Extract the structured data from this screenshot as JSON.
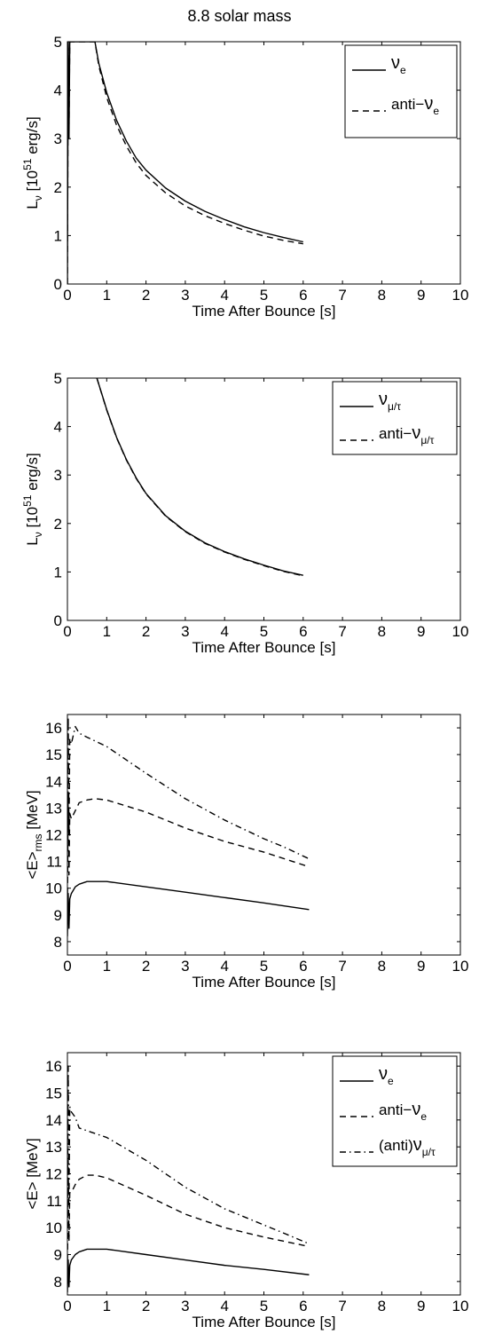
{
  "figure": {
    "title": "8.8 solar mass"
  },
  "chart_data": [
    {
      "type": "line",
      "xlabel": "Time After Bounce [s]",
      "ylabel_main": "L",
      "ylabel_sub": "ν",
      "ylabel_rest": " [10",
      "ylabel_sup": "51",
      "ylabel_tail": " erg/s]",
      "xlim": [
        0,
        10
      ],
      "ylim": [
        0,
        5
      ],
      "xticks": [
        0,
        1,
        2,
        3,
        4,
        5,
        6,
        7,
        8,
        9,
        10
      ],
      "yticks": [
        0,
        1,
        2,
        3,
        4,
        5
      ],
      "legend": "top-right",
      "series": [
        {
          "name_pre": "",
          "name_main": "ν",
          "name_sub": "e",
          "style": "solid",
          "x": [
            0.0,
            0.02,
            0.04,
            0.06,
            0.7,
            0.8,
            1.0,
            1.25,
            1.5,
            1.75,
            2.0,
            2.5,
            3.0,
            3.5,
            4.0,
            4.5,
            5.0,
            5.5,
            6.0
          ],
          "y": [
            0.0,
            5.0,
            3.0,
            5.0,
            5.0,
            4.55,
            3.95,
            3.38,
            2.95,
            2.6,
            2.35,
            1.98,
            1.71,
            1.5,
            1.33,
            1.18,
            1.06,
            0.96,
            0.87
          ]
        },
        {
          "name_pre": "anti−",
          "name_main": "ν",
          "name_sub": "e",
          "style": "dashed",
          "x": [
            0.0,
            0.02,
            0.04,
            0.06,
            0.7,
            0.8,
            1.0,
            1.25,
            1.5,
            1.75,
            2.0,
            2.5,
            3.0,
            3.5,
            4.0,
            4.5,
            5.0,
            5.5,
            6.0
          ],
          "y": [
            0.0,
            5.0,
            3.2,
            5.0,
            5.0,
            4.5,
            3.85,
            3.28,
            2.85,
            2.5,
            2.24,
            1.88,
            1.61,
            1.41,
            1.25,
            1.11,
            0.99,
            0.9,
            0.83
          ]
        }
      ]
    },
    {
      "type": "line",
      "xlabel": "Time After Bounce [s]",
      "ylabel_main": "L",
      "ylabel_sub": "ν",
      "ylabel_rest": " [10",
      "ylabel_sup": "51",
      "ylabel_tail": " erg/s]",
      "xlim": [
        0,
        10
      ],
      "ylim": [
        0,
        5
      ],
      "xticks": [
        0,
        1,
        2,
        3,
        4,
        5,
        6,
        7,
        8,
        9,
        10
      ],
      "yticks": [
        0,
        1,
        2,
        3,
        4,
        5
      ],
      "legend": "top-right",
      "series": [
        {
          "name_pre": "",
          "name_main": "ν",
          "name_sub": "μ/τ",
          "style": "solid",
          "x": [
            0.75,
            1.0,
            1.25,
            1.5,
            1.75,
            2.0,
            2.5,
            3.0,
            3.5,
            4.0,
            4.5,
            5.0,
            5.5,
            6.0
          ],
          "y": [
            5.0,
            4.35,
            3.78,
            3.32,
            2.94,
            2.62,
            2.16,
            1.84,
            1.6,
            1.42,
            1.27,
            1.14,
            1.02,
            0.93
          ]
        },
        {
          "name_pre": "anti−",
          "name_main": "ν",
          "name_sub": "μ/τ",
          "style": "dashed",
          "x": [
            0.75,
            1.0,
            1.25,
            1.5,
            1.75,
            2.0,
            2.5,
            3.0,
            3.5,
            4.0,
            4.5,
            5.0,
            5.5,
            6.0
          ],
          "y": [
            5.0,
            4.34,
            3.77,
            3.31,
            2.93,
            2.61,
            2.15,
            1.83,
            1.59,
            1.41,
            1.26,
            1.13,
            1.01,
            0.92
          ]
        }
      ]
    },
    {
      "type": "line",
      "xlabel": "Time After Bounce [s]",
      "ylabel_main": "<E>",
      "ylabel_sub": "rms",
      "ylabel_rest": " [MeV]",
      "ylabel_sup": "",
      "ylabel_tail": "",
      "xlim": [
        0,
        10
      ],
      "ylim": [
        7.5,
        16.5
      ],
      "xticks": [
        0,
        1,
        2,
        3,
        4,
        5,
        6,
        7,
        8,
        9,
        10
      ],
      "yticks": [
        8,
        9,
        10,
        11,
        12,
        13,
        14,
        15,
        16
      ],
      "legend": "none",
      "series": [
        {
          "style": "solid",
          "x": [
            0.0,
            0.02,
            0.04,
            0.06,
            0.1,
            0.2,
            0.3,
            0.5,
            1.0,
            2.0,
            3.0,
            4.0,
            5.0,
            6.15
          ],
          "y": [
            8.2,
            9.8,
            8.5,
            9.6,
            9.8,
            10.05,
            10.15,
            10.25,
            10.25,
            10.05,
            9.85,
            9.65,
            9.45,
            9.2
          ]
        },
        {
          "style": "dashed",
          "x": [
            0.0,
            0.02,
            0.04,
            0.06,
            0.1,
            0.2,
            0.3,
            0.5,
            0.7,
            1.0,
            2.0,
            3.0,
            4.0,
            5.0,
            6.15
          ],
          "y": [
            9.0,
            13.6,
            10.5,
            12.8,
            12.6,
            12.9,
            13.2,
            13.3,
            13.35,
            13.3,
            12.85,
            12.25,
            11.75,
            11.35,
            10.8
          ]
        },
        {
          "style": "dashdot",
          "x": [
            0.0,
            0.02,
            0.04,
            0.06,
            0.1,
            0.2,
            0.3,
            0.5,
            1.0,
            2.0,
            3.0,
            4.0,
            5.0,
            5.5,
            6.15
          ],
          "y": [
            11.0,
            16.4,
            12.0,
            15.6,
            15.4,
            16.05,
            15.8,
            15.65,
            15.3,
            14.3,
            13.35,
            12.55,
            11.85,
            11.55,
            11.1
          ]
        }
      ]
    },
    {
      "type": "line",
      "xlabel": "Time After Bounce [s]",
      "ylabel_main": "<E>",
      "ylabel_sub": "",
      "ylabel_rest": " [MeV]",
      "ylabel_sup": "",
      "ylabel_tail": "",
      "xlim": [
        0,
        10
      ],
      "ylim": [
        7.5,
        16.5
      ],
      "xticks": [
        0,
        1,
        2,
        3,
        4,
        5,
        6,
        7,
        8,
        9,
        10
      ],
      "yticks": [
        8,
        9,
        10,
        11,
        12,
        13,
        14,
        15,
        16
      ],
      "legend": "top-right",
      "series": [
        {
          "name_pre": "",
          "name_main": "ν",
          "name_sub": "e",
          "style": "solid",
          "x": [
            0.0,
            0.02,
            0.04,
            0.06,
            0.1,
            0.2,
            0.3,
            0.5,
            1.0,
            2.0,
            3.0,
            4.0,
            5.0,
            6.15
          ],
          "y": [
            7.6,
            8.8,
            7.8,
            8.6,
            8.8,
            9.0,
            9.1,
            9.2,
            9.2,
            9.0,
            8.8,
            8.6,
            8.45,
            8.25
          ]
        },
        {
          "name_pre": "anti−",
          "name_main": "ν",
          "name_sub": "e",
          "style": "dashed",
          "x": [
            0.0,
            0.02,
            0.04,
            0.06,
            0.1,
            0.2,
            0.3,
            0.5,
            0.7,
            1.0,
            2.0,
            3.0,
            4.0,
            5.0,
            6.15
          ],
          "y": [
            8.0,
            12.5,
            9.5,
            11.3,
            11.3,
            11.6,
            11.8,
            11.95,
            11.95,
            11.85,
            11.2,
            10.5,
            10.0,
            9.65,
            9.3
          ]
        },
        {
          "name_pre": "(anti)",
          "name_main": "ν",
          "name_sub": "μ/τ",
          "style": "dashdot",
          "x": [
            0.0,
            0.02,
            0.04,
            0.06,
            0.1,
            0.2,
            0.3,
            0.5,
            1.0,
            2.0,
            3.0,
            4.0,
            5.0,
            5.5,
            6.15
          ],
          "y": [
            10.0,
            16.0,
            11.0,
            14.5,
            14.3,
            14.1,
            13.7,
            13.6,
            13.35,
            12.5,
            11.5,
            10.7,
            10.1,
            9.8,
            9.4
          ]
        }
      ]
    }
  ]
}
